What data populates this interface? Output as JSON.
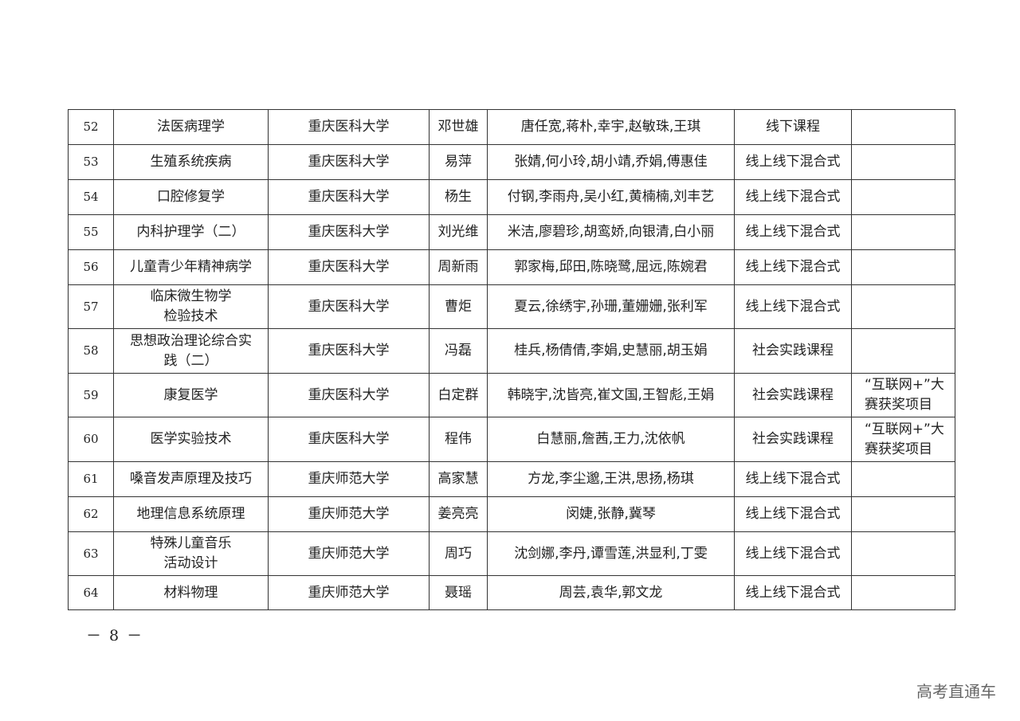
{
  "rows": [
    {
      "no": "52",
      "course": "法医病理学",
      "school": "重庆医科大学",
      "leader": "邓世雄",
      "members": "唐任宽,蒋朴,幸宇,赵敏珠,王琪",
      "type": "线下课程",
      "note": ""
    },
    {
      "no": "53",
      "course": "生殖系统疾病",
      "school": "重庆医科大学",
      "leader": "易萍",
      "members": "张婧,何小玲,胡小靖,乔娟,傅惠佳",
      "type": "线上线下混合式",
      "note": ""
    },
    {
      "no": "54",
      "course": "口腔修复学",
      "school": "重庆医科大学",
      "leader": "杨生",
      "members": "付钢,李雨舟,吴小红,黄楠楠,刘丰艺",
      "type": "线上线下混合式",
      "note": ""
    },
    {
      "no": "55",
      "course": "内科护理学（二）",
      "school": "重庆医科大学",
      "leader": "刘光维",
      "members": "米洁,廖碧珍,胡鸾娇,向银清,白小丽",
      "type": "线上线下混合式",
      "note": ""
    },
    {
      "no": "56",
      "course": "儿童青少年精神病学",
      "school": "重庆医科大学",
      "leader": "周新雨",
      "members": "郭家梅,邱田,陈晓鹭,屈远,陈婉君",
      "type": "线上线下混合式",
      "note": ""
    },
    {
      "no": "57",
      "course": "临床微生物学\n检验技术",
      "school": "重庆医科大学",
      "leader": "曹炬",
      "members": "夏云,徐绣宇,孙珊,董姗姗,张利军",
      "type": "线上线下混合式",
      "note": ""
    },
    {
      "no": "58",
      "course": "思想政治理论综合实\n践（二）",
      "school": "重庆医科大学",
      "leader": "冯磊",
      "members": "桂兵,杨倩倩,李娟,史慧丽,胡玉娟",
      "type": "社会实践课程",
      "note": ""
    },
    {
      "no": "59",
      "course": "康复医学",
      "school": "重庆医科大学",
      "leader": "白定群",
      "members": "韩晓宇,沈皆亮,崔文国,王智彪,王娟",
      "type": "社会实践课程",
      "note": "“互联网+”大\n赛获奖项目"
    },
    {
      "no": "60",
      "course": "医学实验技术",
      "school": "重庆医科大学",
      "leader": "程伟",
      "members": "白慧丽,詹茜,王力,沈依帆",
      "type": "社会实践课程",
      "note": "“互联网+”大\n赛获奖项目"
    },
    {
      "no": "61",
      "course": "嗓音发声原理及技巧",
      "school": "重庆师范大学",
      "leader": "高家慧",
      "members": "方龙,李尘邈,王洪,思扬,杨琪",
      "type": "线上线下混合式",
      "note": ""
    },
    {
      "no": "62",
      "course": "地理信息系统原理",
      "school": "重庆师范大学",
      "leader": "姜亮亮",
      "members": "闵婕,张静,冀琴",
      "type": "线上线下混合式",
      "note": ""
    },
    {
      "no": "63",
      "course": "特殊儿童音乐\n活动设计",
      "school": "重庆师范大学",
      "leader": "周巧",
      "members": "沈剑娜,李丹,谭雪莲,洪显利,丁雯",
      "type": "线上线下混合式",
      "note": ""
    },
    {
      "no": "64",
      "course": "材料物理",
      "school": "重庆师范大学",
      "leader": "聂瑶",
      "members": "周芸,袁华,郭文龙",
      "type": "线上线下混合式",
      "note": ""
    }
  ],
  "footer": {
    "page": "－ 8 －"
  },
  "watermark": "高考直通车"
}
